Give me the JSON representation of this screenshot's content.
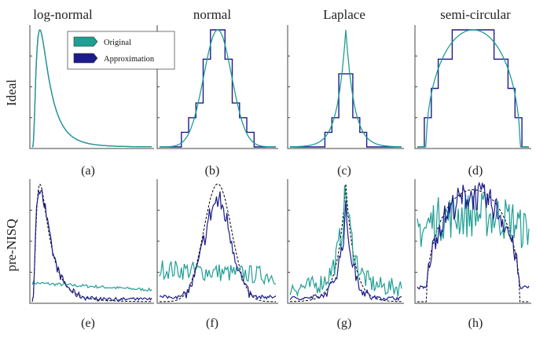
{
  "columns": [
    "log-normal",
    "normal",
    "Laplace",
    "semi-circular"
  ],
  "rows": [
    "Ideal",
    "pre-NISQ"
  ],
  "panel_labels": [
    "(a)",
    "(b)",
    "(c)",
    "(d)",
    "(e)",
    "(f)",
    "(g)",
    "(h)"
  ],
  "legend": {
    "entries": [
      {
        "label": "Original",
        "color": "#1f9e93"
      },
      {
        "label": "Approximation",
        "color": "#1c1c8c"
      }
    ]
  },
  "colors": {
    "original": "#1f9e93",
    "approximation": "#1c1c8c",
    "ideal_dashed": "#000000"
  },
  "chart_data": [
    {
      "type": "line",
      "panel": "(a)",
      "row": "Ideal",
      "distribution": "log-normal",
      "series": [
        {
          "name": "Original",
          "shape": "log-normal"
        },
        {
          "name": "Approximation",
          "shape": "log-normal, fine-grained steps"
        }
      ]
    },
    {
      "type": "line",
      "panel": "(b)",
      "row": "Ideal",
      "distribution": "normal",
      "series": [
        {
          "name": "Original",
          "shape": "gaussian"
        },
        {
          "name": "Approximation",
          "shape": "staircase, 16 levels"
        }
      ]
    },
    {
      "type": "line",
      "panel": "(c)",
      "row": "Ideal",
      "distribution": "Laplace",
      "series": [
        {
          "name": "Original",
          "shape": "laplace"
        },
        {
          "name": "Approximation",
          "shape": "staircase, 16 levels"
        }
      ]
    },
    {
      "type": "line",
      "panel": "(d)",
      "row": "Ideal",
      "distribution": "semi-circular",
      "series": [
        {
          "name": "Original",
          "shape": "semicircle"
        },
        {
          "name": "Approximation",
          "shape": "staircase, 8 levels"
        }
      ]
    },
    {
      "type": "line",
      "panel": "(e)",
      "row": "pre-NISQ",
      "distribution": "log-normal",
      "series": [
        {
          "name": "Original",
          "shape": "noisy, nearly flat"
        },
        {
          "name": "Approximation",
          "shape": "noisy log-normal"
        }
      ]
    },
    {
      "type": "line",
      "panel": "(f)",
      "row": "pre-NISQ",
      "distribution": "normal",
      "series": [
        {
          "name": "Original",
          "shape": "noisy, nearly flat"
        },
        {
          "name": "Approximation",
          "shape": "noisy gaussian"
        }
      ]
    },
    {
      "type": "line",
      "panel": "(g)",
      "row": "pre-NISQ",
      "distribution": "Laplace",
      "series": [
        {
          "name": "Original",
          "shape": "noisy laplace"
        },
        {
          "name": "Approximation",
          "shape": "noisy laplace"
        }
      ]
    },
    {
      "type": "line",
      "panel": "(h)",
      "row": "pre-NISQ",
      "distribution": "semi-circular",
      "series": [
        {
          "name": "Original",
          "shape": "noisy semicircle"
        },
        {
          "name": "Approximation",
          "shape": "noisy semicircle"
        }
      ]
    }
  ]
}
